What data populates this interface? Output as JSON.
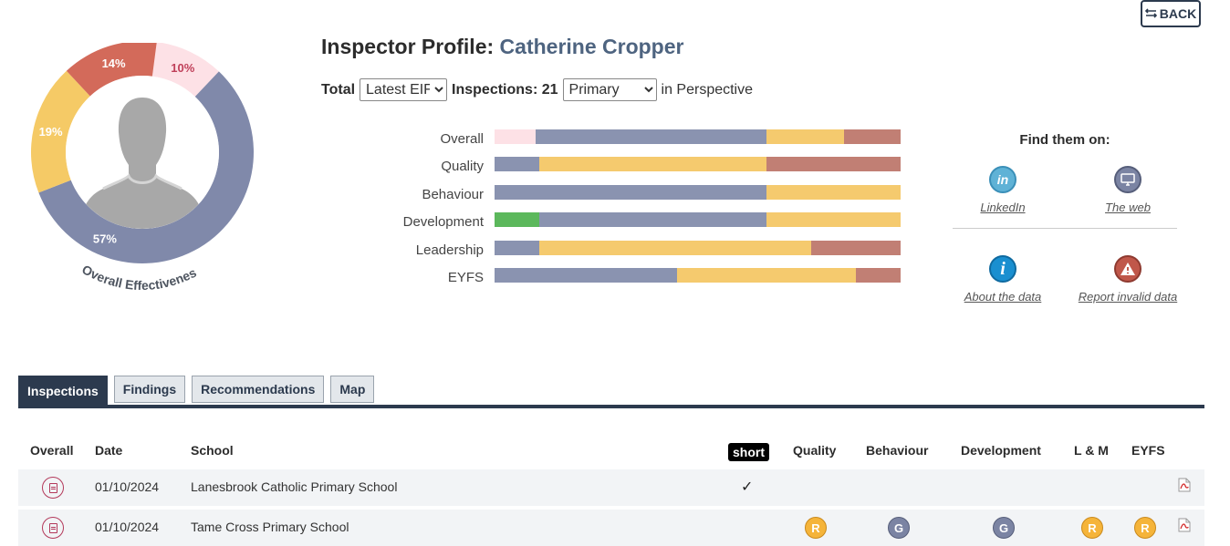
{
  "back_label": "BACK",
  "back_icon": "swap-arrows-icon",
  "donut": {
    "caption": "Overall Effectiveness",
    "segments": [
      {
        "label": "10%",
        "value": 10,
        "color": "#fde1e6",
        "text_color": "#c0405a"
      },
      {
        "label": "57%",
        "value": 57,
        "color": "#8089aa",
        "text_color": "#ffffff"
      },
      {
        "label": "19%",
        "value": 19,
        "color": "#f5ca66",
        "text_color": "#ffffff"
      },
      {
        "label": "14%",
        "value": 14,
        "color": "#d36a5a",
        "text_color": "#ffffff"
      }
    ]
  },
  "profile": {
    "title_prefix": "Inspector Profile:",
    "name": "Catherine Cropper"
  },
  "controls": {
    "total_label": "Total",
    "eif_selected": "Latest EIF",
    "inspections_label": "Inspections: 21",
    "phase_selected": "Primary",
    "suffix": "in Perspective"
  },
  "colors": {
    "outstanding": "#5cb85c",
    "good": "#8a93b0",
    "ri": "#f5ca6e",
    "inadequate": "#c17f74",
    "pink": "#fde1e6",
    "dark": "#2c3a4e"
  },
  "perspective": [
    {
      "label": "Overall",
      "segments": [
        {
          "v": 10,
          "c": "pink"
        },
        {
          "v": 57,
          "c": "good"
        },
        {
          "v": 19,
          "c": "ri"
        },
        {
          "v": 14,
          "c": "inadequate"
        }
      ]
    },
    {
      "label": "Quality",
      "segments": [
        {
          "v": 11,
          "c": "good"
        },
        {
          "v": 56,
          "c": "ri"
        },
        {
          "v": 33,
          "c": "inadequate"
        }
      ]
    },
    {
      "label": "Behaviour",
      "segments": [
        {
          "v": 67,
          "c": "good"
        },
        {
          "v": 33,
          "c": "ri"
        }
      ]
    },
    {
      "label": "Development",
      "segments": [
        {
          "v": 11,
          "c": "outstanding"
        },
        {
          "v": 56,
          "c": "good"
        },
        {
          "v": 33,
          "c": "ri"
        }
      ]
    },
    {
      "label": "Leadership",
      "segments": [
        {
          "v": 11,
          "c": "good"
        },
        {
          "v": 67,
          "c": "ri"
        },
        {
          "v": 22,
          "c": "inadequate"
        }
      ]
    },
    {
      "label": "EYFS",
      "segments": [
        {
          "v": 45,
          "c": "good"
        },
        {
          "v": 44,
          "c": "ri"
        },
        {
          "v": 11,
          "c": "inadequate"
        }
      ]
    }
  ],
  "find": {
    "title": "Find them on:",
    "linkedin": "LinkedIn",
    "web": "The web",
    "about": "About the data",
    "report": "Report invalid data",
    "linkedin_icon_text": "in",
    "about_icon_text": "i",
    "report_icon_text": "!"
  },
  "tabs": [
    {
      "label": "Inspections",
      "active": true
    },
    {
      "label": "Findings",
      "active": false
    },
    {
      "label": "Recommendations",
      "active": false
    },
    {
      "label": "Map",
      "active": false
    }
  ],
  "table": {
    "headers": {
      "overall": "Overall",
      "date": "Date",
      "school": "School",
      "short": "short",
      "quality": "Quality",
      "behaviour": "Behaviour",
      "development": "Development",
      "lm": "L & M",
      "eyfs": "EYFS"
    },
    "rows": [
      {
        "date": "01/10/2024",
        "school": "Lanesbrook Catholic Primary School",
        "short": "✓",
        "quality": "",
        "behaviour": "",
        "development": "",
        "lm": "",
        "eyfs": ""
      },
      {
        "date": "01/10/2024",
        "school": "Tame Cross Primary School",
        "short": "",
        "quality": "R",
        "behaviour": "G",
        "development": "G",
        "lm": "R",
        "eyfs": "R"
      }
    ]
  }
}
